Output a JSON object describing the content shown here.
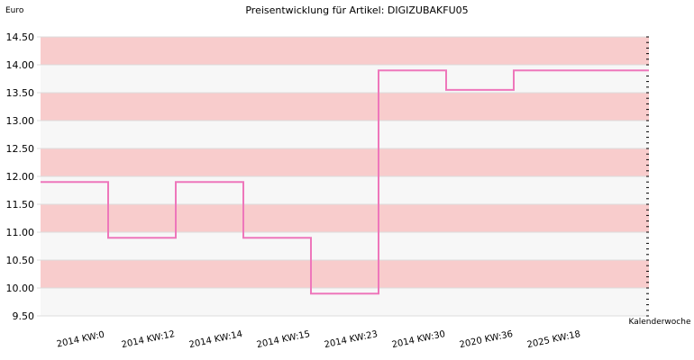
{
  "chart_data": {
    "type": "line",
    "title": "Preisentwicklung für Artikel: DIGIZUBAKFU05",
    "ylabel": "Euro",
    "xlabel": "Kalenderwoche",
    "ylim": [
      9.5,
      14.5
    ],
    "yticks": [
      "9.50",
      "10.00",
      "10.50",
      "11.00",
      "11.50",
      "12.00",
      "12.50",
      "13.00",
      "13.50",
      "14.00",
      "14.50"
    ],
    "categories": [
      "2014 KW:0",
      "2014 KW:12",
      "2014 KW:14",
      "2014 KW:15",
      "2014 KW:23",
      "2014 KW:30",
      "2020 KW:36",
      "2025 KW:18"
    ],
    "series": [
      {
        "values": [
          11.9,
          10.9,
          11.9,
          10.9,
          9.9,
          13.9,
          13.55,
          13.9
        ]
      }
    ],
    "grid": true,
    "line_color": "#ee77bb",
    "band_color": "#f8cccc",
    "alt_band_color": "#f7f7f7"
  }
}
